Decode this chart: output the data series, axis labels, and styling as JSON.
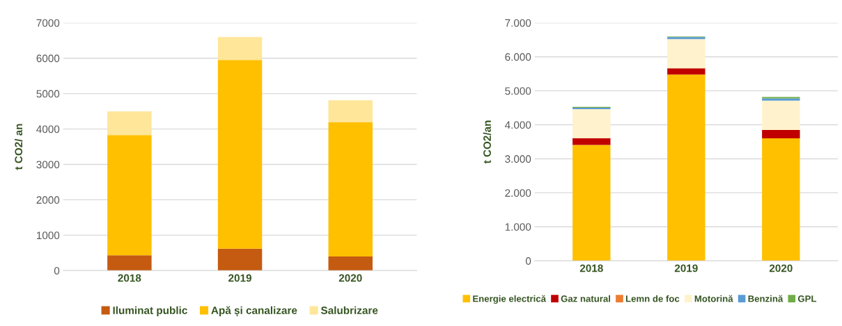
{
  "chart_data": [
    {
      "type": "bar",
      "stacked": true,
      "categories": [
        "2018",
        "2019",
        "2020"
      ],
      "ylabel": "t CO2/ an",
      "ylim": [
        0,
        7000
      ],
      "yticks": [
        0,
        1000,
        2000,
        3000,
        4000,
        5000,
        6000,
        7000
      ],
      "grid": "y",
      "legend": "bottom",
      "series": [
        {
          "name": "Iluminat public",
          "color": "#c55a11",
          "values": [
            430,
            620,
            400
          ]
        },
        {
          "name": "Apă și canalizare",
          "color": "#ffc000",
          "values": [
            3400,
            5330,
            3790
          ]
        },
        {
          "name": "Salubrizare",
          "color": "#ffe699",
          "values": [
            670,
            650,
            620
          ]
        }
      ]
    },
    {
      "type": "bar",
      "stacked": true,
      "categories": [
        "2018",
        "2019",
        "2020"
      ],
      "ylabel": "t CO2/an",
      "ylim": [
        0,
        7000
      ],
      "yticks": [
        0,
        {
          "value": 1000,
          "label": "1.000"
        },
        {
          "value": 2000,
          "label": "2.000"
        },
        {
          "value": 3000,
          "label": "3.000"
        },
        {
          "value": 4000,
          "label": "4.000"
        },
        {
          "value": 5000,
          "label": "5.000"
        },
        {
          "value": 6000,
          "label": "6.000"
        },
        {
          "value": 7000,
          "label": "7.000"
        }
      ],
      "grid": "y",
      "legend": "bottom",
      "series": [
        {
          "name": "Energie electrică",
          "color": "#ffc000",
          "values": [
            3410,
            5480,
            3600
          ]
        },
        {
          "name": "Gaz natural",
          "color": "#c00000",
          "values": [
            200,
            180,
            250
          ]
        },
        {
          "name": "Lemn de foc",
          "color": "#ed7d31",
          "values": [
            0,
            0,
            0
          ]
        },
        {
          "name": "Motorină",
          "color": "#fff2cc",
          "values": [
            850,
            860,
            860
          ]
        },
        {
          "name": "Benzină",
          "color": "#5b9bd5",
          "values": [
            40,
            60,
            70
          ]
        },
        {
          "name": "GPL",
          "color": "#70ad47",
          "values": [
            30,
            20,
            40
          ]
        }
      ]
    }
  ]
}
